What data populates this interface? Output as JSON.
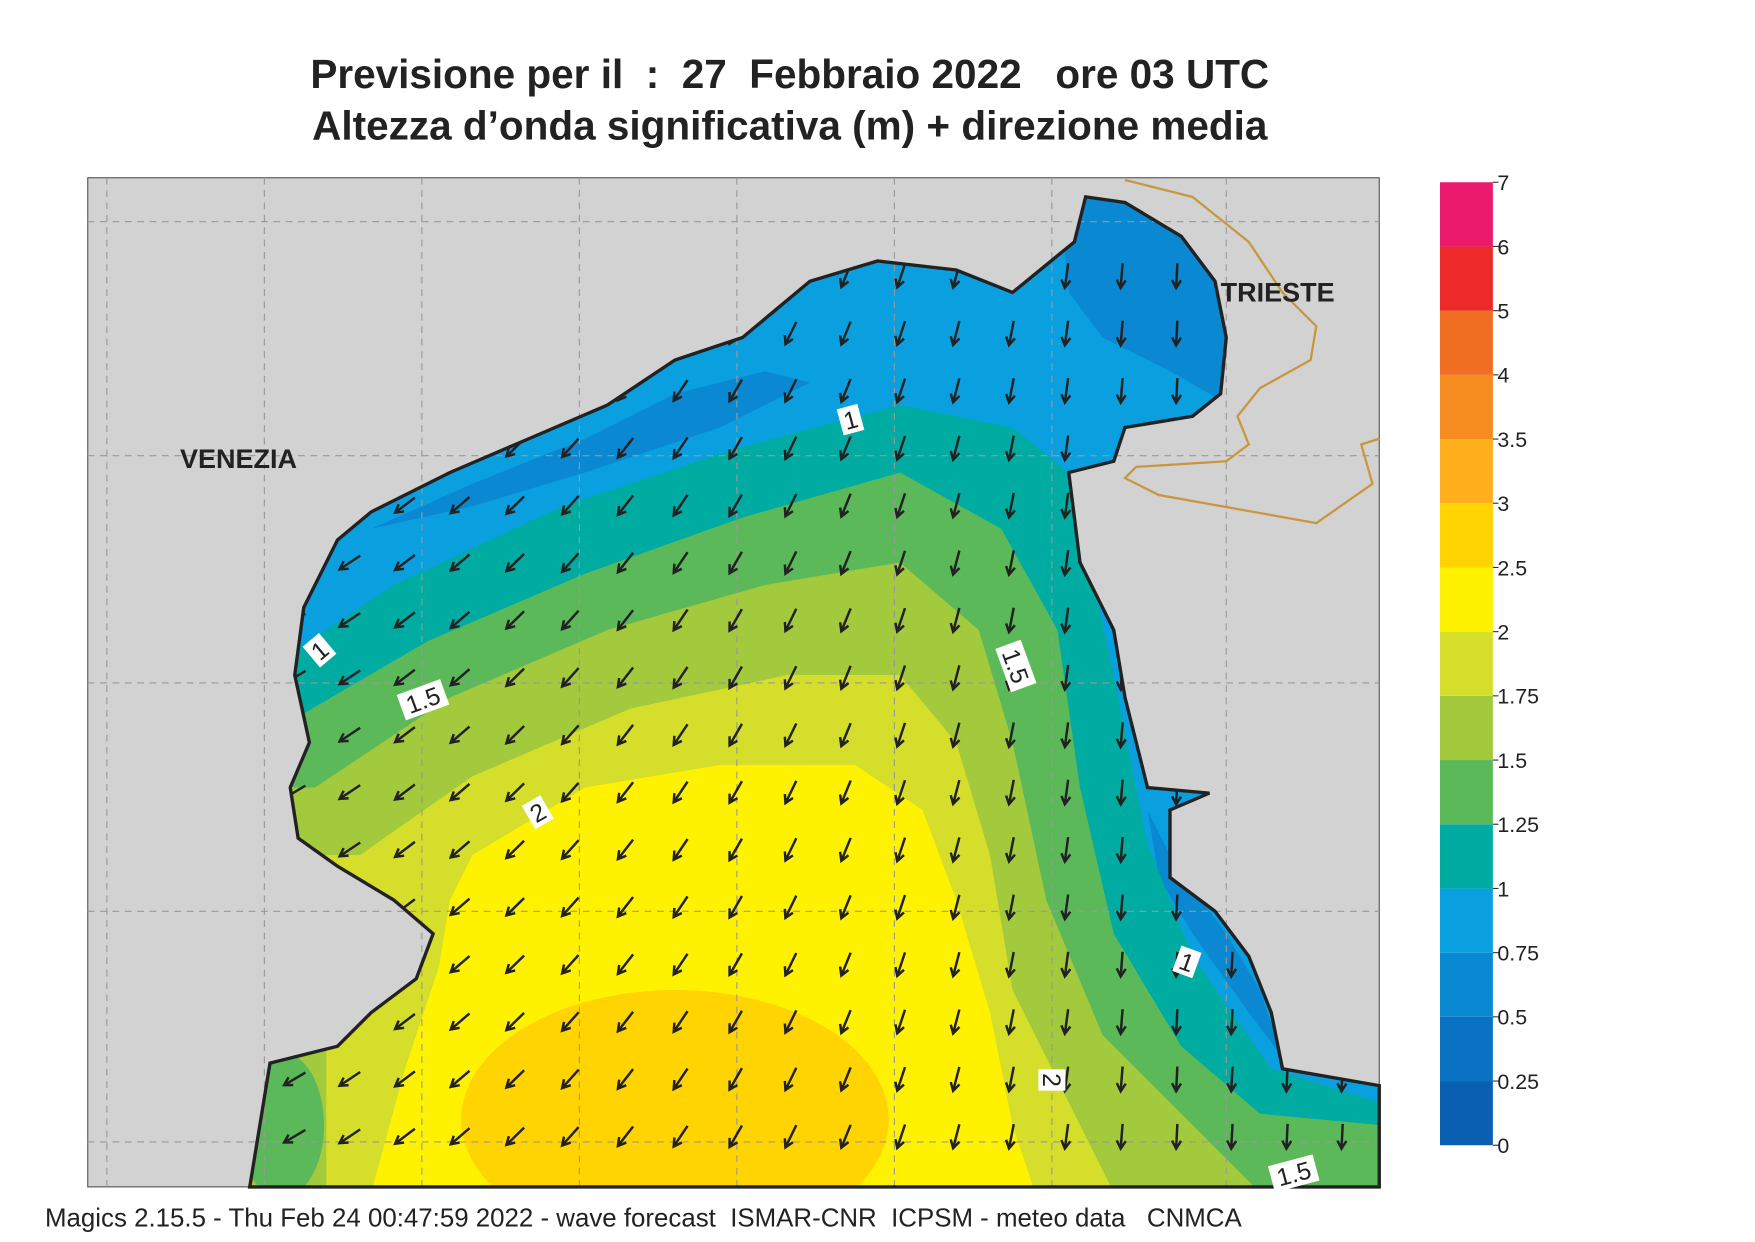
{
  "title": "Previsione per il  :  27  Febbraio 2022   ore 03 UTC",
  "subtitle": "Altezza d’onda significativa (m) + direzione media",
  "places": [
    "VENEZIA",
    "TRIESTE"
  ],
  "contour_labels": [
    1,
    1,
    1.5,
    1.5,
    2,
    1,
    2,
    1.5
  ],
  "colorbar": {
    "ticks": [
      0,
      0.25,
      0.5,
      0.75,
      1,
      1.25,
      1.5,
      1.75,
      2,
      2.5,
      3,
      3.5,
      4,
      5,
      6,
      7
    ],
    "colors": [
      "#0b5fb3",
      "#0a72c2",
      "#0a88d2",
      "#0aa0e0",
      "#00aba2",
      "#5cb95a",
      "#a3c93c",
      "#d5de2a",
      "#fff200",
      "#ffd400",
      "#ffae1c",
      "#f68c1f",
      "#f06e22",
      "#ec2a2a",
      "#ec1a6c"
    ]
  },
  "footer": "Magics 2.15.5 - Thu Feb 24 00:47:59 2022 - wave forecast  ISMAR-CNR  ICPSM - meteo data   CNMCA"
}
